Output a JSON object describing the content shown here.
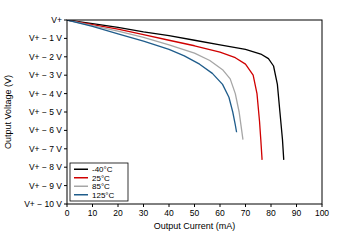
{
  "chart_data": {
    "type": "line",
    "x_label": "Output Current (mA)",
    "y_label": "Output Voltage (V)",
    "xlim": [
      0,
      100
    ],
    "ylim": [
      -10,
      0
    ],
    "xticks": [
      0,
      10,
      20,
      30,
      40,
      50,
      60,
      70,
      80,
      90,
      100
    ],
    "yticks": [
      {
        "value": 0,
        "label": "V+"
      },
      {
        "value": -1,
        "label": "V+ − 1 V"
      },
      {
        "value": -2,
        "label": "V+ − 2 V"
      },
      {
        "value": -3,
        "label": "V+ − 3 V"
      },
      {
        "value": -4,
        "label": "V+ − 4 V"
      },
      {
        "value": -5,
        "label": "V+ − 5 V"
      },
      {
        "value": -6,
        "label": "V+ − 6 V"
      },
      {
        "value": -7,
        "label": "V+ − 7 V"
      },
      {
        "value": -8,
        "label": "V+ − 8 V"
      },
      {
        "value": -9,
        "label": "V+ − 9 V"
      },
      {
        "value": -10,
        "label": "V+ − 10 V"
      }
    ],
    "grid": false,
    "legend": "lower left",
    "series": [
      {
        "name": "-40°C",
        "color": "#000000",
        "x": [
          0,
          10,
          20,
          30,
          40,
          50,
          60,
          70,
          76,
          79,
          81,
          82.5,
          83.5,
          84.5,
          85
        ],
        "values": [
          0,
          -0.2,
          -0.4,
          -0.65,
          -0.85,
          -1.1,
          -1.35,
          -1.6,
          -1.85,
          -2.1,
          -2.5,
          -3.5,
          -5,
          -6.5,
          -7.6
        ]
      },
      {
        "name": "25°C",
        "color": "#d00000",
        "x": [
          0,
          10,
          20,
          30,
          40,
          50,
          60,
          66,
          70,
          73,
          74.5,
          75.5,
          76,
          76.5
        ],
        "values": [
          0,
          -0.25,
          -0.5,
          -0.8,
          -1.1,
          -1.4,
          -1.75,
          -2.05,
          -2.4,
          -3,
          -4,
          -5.5,
          -6.5,
          -7.6
        ]
      },
      {
        "name": "85°C",
        "color": "#a6a6a6",
        "x": [
          0,
          10,
          20,
          30,
          40,
          50,
          56,
          61,
          64,
          66,
          67.5,
          68.5,
          69
        ],
        "values": [
          0,
          -0.3,
          -0.6,
          -0.95,
          -1.35,
          -1.8,
          -2.2,
          -2.7,
          -3.2,
          -4,
          -5,
          -6,
          -6.5
        ]
      },
      {
        "name": "125°C",
        "color": "#1f5c8b",
        "x": [
          0,
          10,
          20,
          30,
          40,
          46,
          52,
          57,
          61,
          63.5,
          65,
          66,
          66.5
        ],
        "values": [
          0,
          -0.35,
          -0.75,
          -1.15,
          -1.6,
          -1.95,
          -2.4,
          -2.9,
          -3.5,
          -4.2,
          -5,
          -5.7,
          -6.1
        ]
      }
    ]
  }
}
